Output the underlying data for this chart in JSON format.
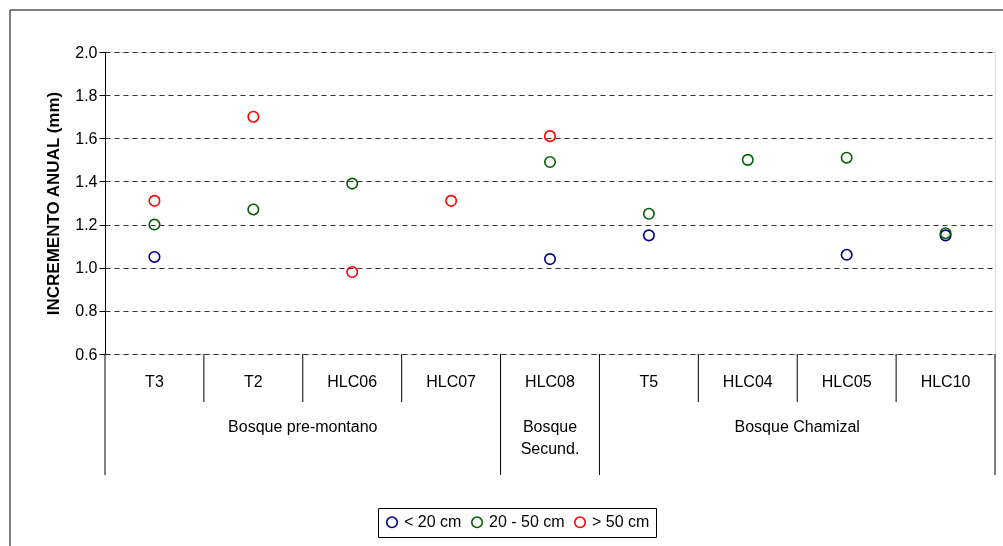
{
  "chart_data": {
    "type": "scatter",
    "ylabel": "INCREMENTO ANUAL (mm)",
    "categories": [
      "T3",
      "T2",
      "HLC06",
      "HLC07",
      "HLC08",
      "T5",
      "HLC04",
      "HLC05",
      "HLC10"
    ],
    "series": [
      {
        "name": "< 20 cm",
        "color": "#000080",
        "values": [
          1.05,
          null,
          null,
          null,
          1.04,
          1.15,
          null,
          1.06,
          1.15
        ]
      },
      {
        "name": "20 - 50 cm",
        "color": "#006000",
        "values": [
          1.2,
          1.27,
          1.39,
          null,
          1.49,
          1.25,
          1.5,
          1.51,
          1.16
        ]
      },
      {
        "name": "> 50 cm",
        "color": "#ff0000",
        "values": [
          1.31,
          1.7,
          0.98,
          1.31,
          1.61,
          null,
          null,
          null,
          null
        ]
      }
    ],
    "ylim": [
      0.6,
      2.0
    ],
    "yticks": [
      {
        "value": 0.6,
        "label": "0.6"
      },
      {
        "value": 0.8,
        "label": "0.8"
      },
      {
        "value": 1.0,
        "label": "1.0"
      },
      {
        "value": 1.2,
        "label": "1.2"
      },
      {
        "value": 1.4,
        "label": "1.4"
      },
      {
        "value": 1.6,
        "label": "1.6"
      },
      {
        "value": 1.8,
        "label": "1.8"
      },
      {
        "value": 2.0,
        "label": "2.0"
      }
    ],
    "grid": "y",
    "legend": "bottom",
    "marker": "circle",
    "annotations": [
      "Bosque pre-montano",
      "Bosque Secund.",
      "Bosque Chamizal"
    ]
  }
}
